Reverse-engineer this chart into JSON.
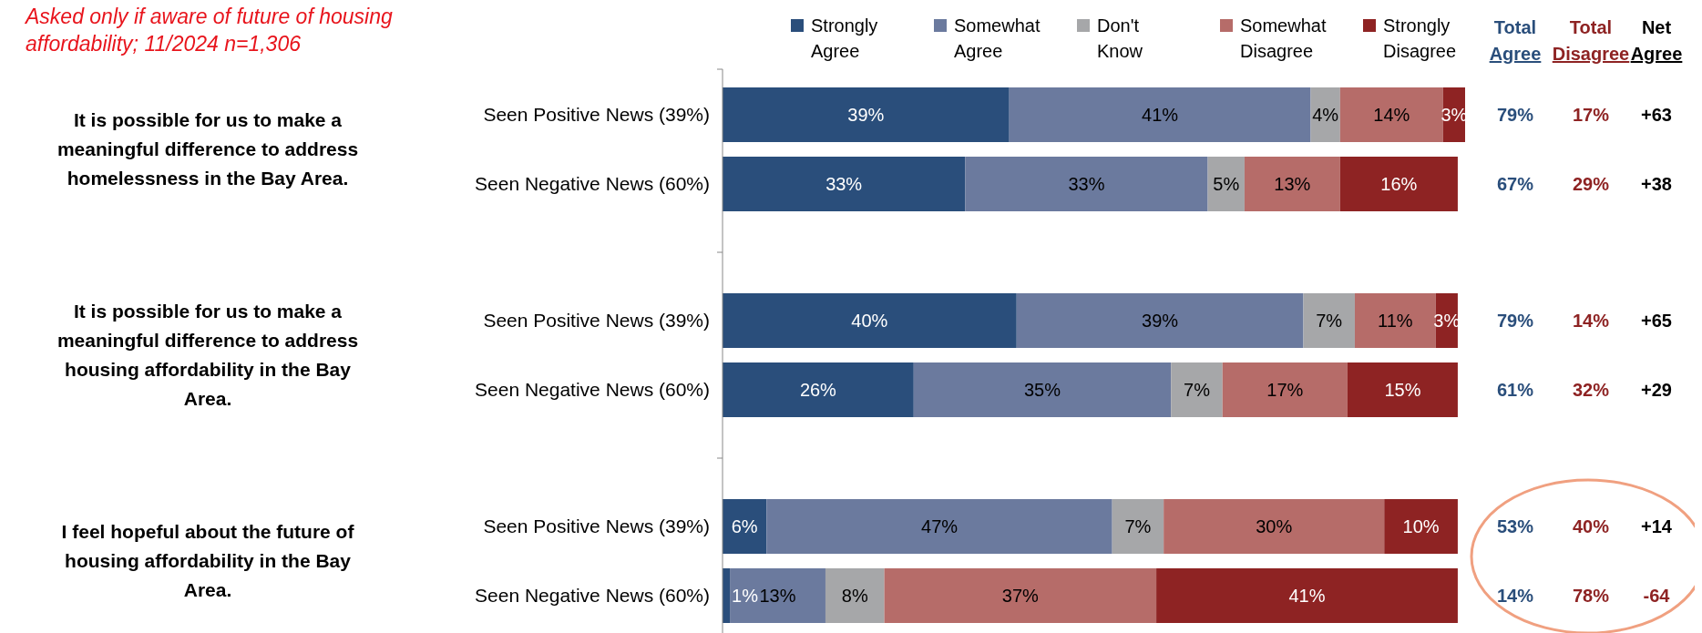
{
  "chart_data": {
    "type": "bar",
    "orientation": "horizontal",
    "stacked": true,
    "legend": "top",
    "data_labels": true,
    "subtitle": "Asked only if aware of future of housing affordability; 11/2024 n=1,306",
    "categories": [
      "Seen Positive News (39%)",
      "Seen Negative News (60%)",
      "Seen Positive News (39%)",
      "Seen Negative News (60%)",
      "Seen Positive News (39%)",
      "Seen Negative News (60%)"
    ],
    "xlim": [
      0,
      101
    ],
    "series": [
      {
        "name": "Strongly Agree",
        "color": "#2a4e7b",
        "values": [
          39,
          33,
          40,
          26,
          6,
          1
        ],
        "value_labels": [
          "39%",
          "33%",
          "40%",
          "26%",
          "6%",
          "1%"
        ]
      },
      {
        "name": "Somewhat Agree",
        "color": "#6b7a9e",
        "values": [
          41,
          33,
          39,
          35,
          47,
          13
        ],
        "value_labels": [
          "41%",
          "33%",
          "39%",
          "35%",
          "47%",
          "13%"
        ]
      },
      {
        "name": "Don't Know",
        "color": "#a6a7a9",
        "values": [
          4,
          5,
          7,
          7,
          7,
          8
        ],
        "value_labels": [
          "4%",
          "5%",
          "7%",
          "7%",
          "7%",
          "8%"
        ]
      },
      {
        "name": "Somewhat Disagree",
        "color": "#b66c69",
        "values": [
          14,
          13,
          11,
          17,
          30,
          37
        ],
        "value_labels": [
          "14%",
          "13%",
          "11%",
          "17%",
          "30%",
          "37%"
        ]
      },
      {
        "name": "Strongly Disagree",
        "color": "#8e2323",
        "values": [
          3,
          16,
          3,
          15,
          10,
          41
        ],
        "value_labels": [
          "3%",
          "16%",
          "3%",
          "15%",
          "10%",
          "41%"
        ]
      }
    ],
    "annotations": [
      "It is possible for us to make a meaningful difference to address homelessness in the Bay Area.",
      "It is possible for us to make a meaningful difference to address housing affordability in the Bay Area.",
      "I feel hopeful about the future of housing affordability in the Bay Area.",
      "Total Agree",
      "Total Disagree",
      "Net Agree",
      "79%",
      "17%",
      "+63",
      "67%",
      "29%",
      "+38",
      "79%",
      "14%",
      "+65",
      "61%",
      "32%",
      "+29",
      "53%",
      "40%",
      "+14",
      "14%",
      "78%",
      "-64"
    ]
  }
}
